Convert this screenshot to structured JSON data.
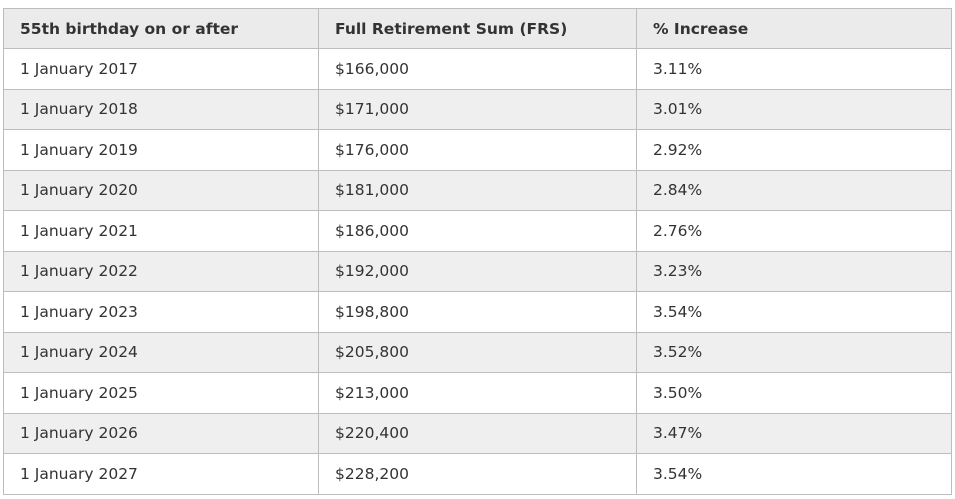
{
  "table": {
    "headers": [
      "55th birthday on or after",
      "Full Retirement Sum (FRS)",
      "% Increase"
    ],
    "rows": [
      [
        "1 January 2017",
        "$166,000",
        "3.11%"
      ],
      [
        "1 January 2018",
        "$171,000",
        "3.01%"
      ],
      [
        "1 January 2019",
        "$176,000",
        "2.92%"
      ],
      [
        "1 January 2020",
        "$181,000",
        "2.84%"
      ],
      [
        "1 January 2021",
        "$186,000",
        "2.76%"
      ],
      [
        "1 January 2022",
        "$192,000",
        "3.23%"
      ],
      [
        "1 January 2023",
        "$198,800",
        "3.54%"
      ],
      [
        "1 January 2024",
        "$205,800",
        "3.52%"
      ],
      [
        "1 January 2025",
        "$213,000",
        "3.50%"
      ],
      [
        "1 January 2026",
        "$220,400",
        "3.47%"
      ],
      [
        "1 January 2027",
        "$228,200",
        "3.54%"
      ]
    ]
  }
}
